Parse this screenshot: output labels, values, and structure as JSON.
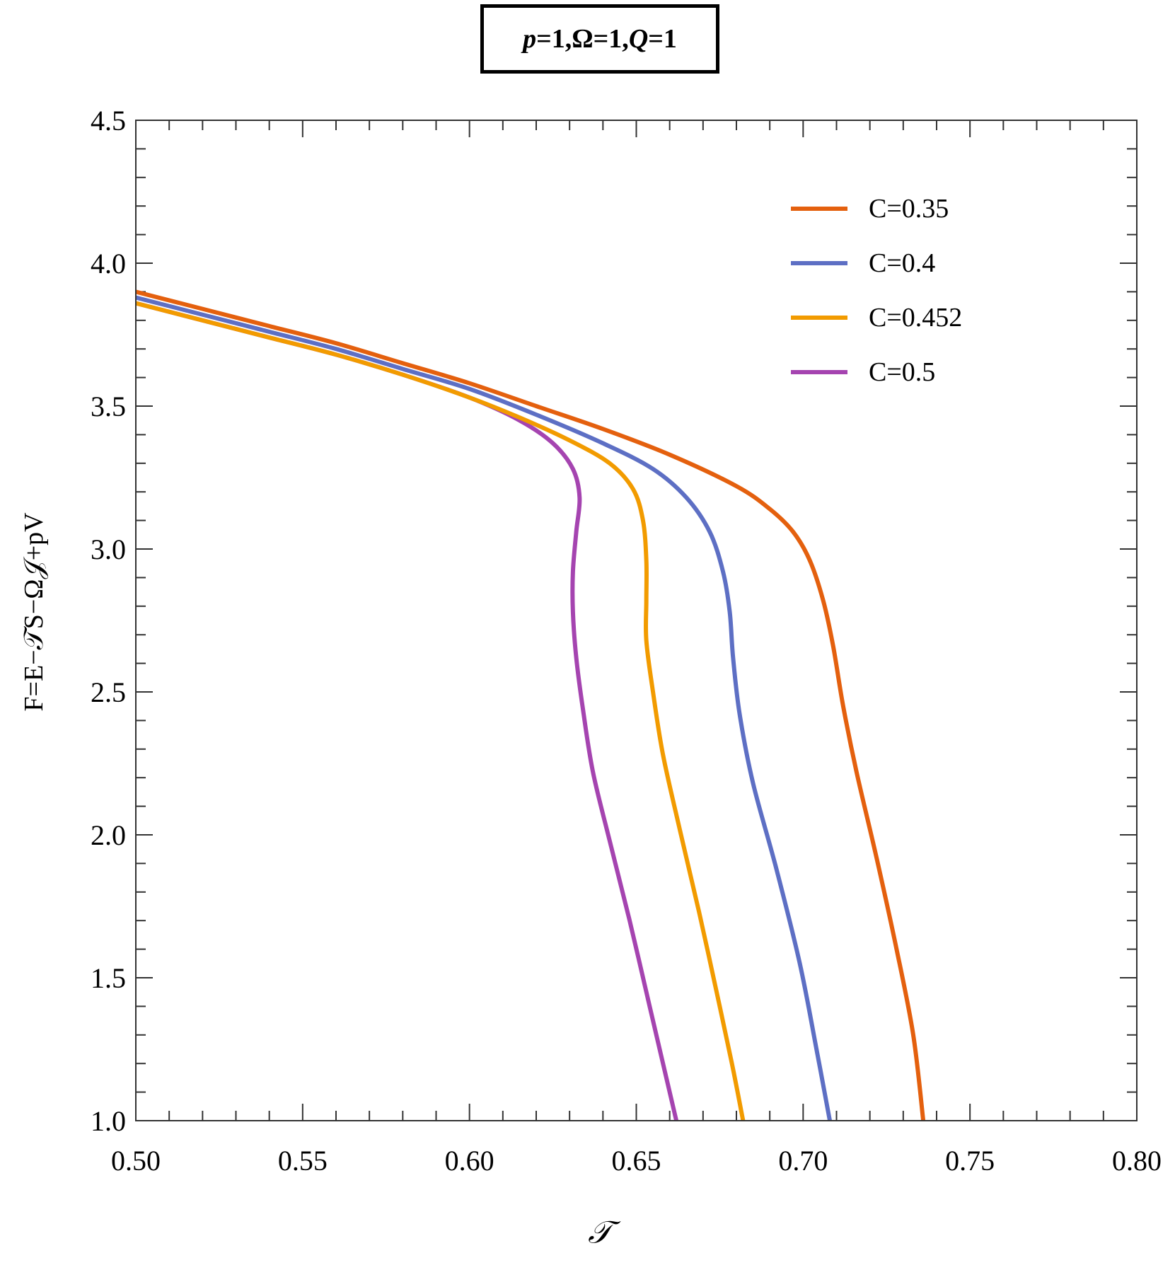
{
  "title": {
    "parts": [
      {
        "text": "p",
        "italic": true
      },
      {
        "text": "=1, ",
        "italic": false
      },
      {
        "text": "Ω",
        "italic": false
      },
      {
        "text": "=1, ",
        "italic": false
      },
      {
        "text": "Q",
        "italic": true
      },
      {
        "text": "=1",
        "italic": false
      }
    ],
    "text": "p=1, Ω=1, Q=1"
  },
  "axes": {
    "xlabel": "𝒯",
    "ylabel": "F=E−𝒯S−Ω𝒥+pV"
  },
  "legend": {
    "items": [
      {
        "label": "C=0.35",
        "color": "#E4600E"
      },
      {
        "label": "C=0.4",
        "color": "#5D6FC4"
      },
      {
        "label": "C=0.452",
        "color": "#F29B00"
      },
      {
        "label": "C=0.5",
        "color": "#A544B0"
      }
    ]
  },
  "chart_data": {
    "type": "line",
    "title": "p=1, Ω=1, Q=1",
    "xlabel": "𝒯",
    "ylabel": "F=E−𝒯S−Ω𝒥+pV",
    "xlim": [
      0.5,
      0.8
    ],
    "ylim": [
      1.0,
      4.5
    ],
    "x_ticks": [
      "0.50",
      "0.55",
      "0.60",
      "0.65",
      "0.70",
      "0.75",
      "0.80"
    ],
    "y_ticks": [
      "1.0",
      "1.5",
      "2.0",
      "2.5",
      "3.0",
      "3.5",
      "4.0",
      "4.5"
    ],
    "x_minor_step": 0.01,
    "y_minor_step": 0.1,
    "grid": false,
    "legend_position": "upper right",
    "series": [
      {
        "name": "C=0.35",
        "color": "#E4600E",
        "points": [
          [
            0.5,
            3.9
          ],
          [
            0.52,
            3.84
          ],
          [
            0.54,
            3.78
          ],
          [
            0.56,
            3.72
          ],
          [
            0.58,
            3.65
          ],
          [
            0.6,
            3.58
          ],
          [
            0.62,
            3.5
          ],
          [
            0.64,
            3.42
          ],
          [
            0.66,
            3.33
          ],
          [
            0.68,
            3.22
          ],
          [
            0.69,
            3.14
          ],
          [
            0.697,
            3.06
          ],
          [
            0.702,
            2.96
          ],
          [
            0.706,
            2.82
          ],
          [
            0.709,
            2.66
          ],
          [
            0.712,
            2.45
          ],
          [
            0.716,
            2.22
          ],
          [
            0.722,
            1.92
          ],
          [
            0.728,
            1.6
          ],
          [
            0.733,
            1.3
          ],
          [
            0.736,
            1.0
          ]
        ]
      },
      {
        "name": "C=0.4",
        "color": "#5D6FC4",
        "points": [
          [
            0.5,
            3.88
          ],
          [
            0.52,
            3.82
          ],
          [
            0.54,
            3.76
          ],
          [
            0.56,
            3.7
          ],
          [
            0.58,
            3.63
          ],
          [
            0.6,
            3.56
          ],
          [
            0.62,
            3.47
          ],
          [
            0.64,
            3.37
          ],
          [
            0.655,
            3.28
          ],
          [
            0.665,
            3.18
          ],
          [
            0.672,
            3.06
          ],
          [
            0.676,
            2.92
          ],
          [
            0.678,
            2.78
          ],
          [
            0.679,
            2.62
          ],
          [
            0.681,
            2.42
          ],
          [
            0.685,
            2.18
          ],
          [
            0.692,
            1.88
          ],
          [
            0.699,
            1.55
          ],
          [
            0.704,
            1.25
          ],
          [
            0.708,
            1.0
          ]
        ]
      },
      {
        "name": "C=0.452",
        "color": "#F29B00",
        "points": [
          [
            0.5,
            3.86
          ],
          [
            0.52,
            3.8
          ],
          [
            0.54,
            3.74
          ],
          [
            0.56,
            3.68
          ],
          [
            0.58,
            3.61
          ],
          [
            0.6,
            3.53
          ],
          [
            0.615,
            3.46
          ],
          [
            0.63,
            3.38
          ],
          [
            0.642,
            3.3
          ],
          [
            0.649,
            3.21
          ],
          [
            0.652,
            3.1
          ],
          [
            0.653,
            2.96
          ],
          [
            0.653,
            2.82
          ],
          [
            0.653,
            2.68
          ],
          [
            0.655,
            2.5
          ],
          [
            0.658,
            2.28
          ],
          [
            0.663,
            2.02
          ],
          [
            0.669,
            1.72
          ],
          [
            0.675,
            1.4
          ],
          [
            0.679,
            1.18
          ],
          [
            0.682,
            1.0
          ]
        ]
      },
      {
        "name": "C=0.5",
        "color": "#A544B0",
        "points": [
          [
            0.5,
            3.86
          ],
          [
            0.52,
            3.8
          ],
          [
            0.54,
            3.74
          ],
          [
            0.56,
            3.68
          ],
          [
            0.58,
            3.61
          ],
          [
            0.6,
            3.53
          ],
          [
            0.615,
            3.45
          ],
          [
            0.625,
            3.37
          ],
          [
            0.631,
            3.28
          ],
          [
            0.633,
            3.18
          ],
          [
            0.632,
            3.06
          ],
          [
            0.631,
            2.92
          ],
          [
            0.631,
            2.78
          ],
          [
            0.632,
            2.62
          ],
          [
            0.634,
            2.44
          ],
          [
            0.637,
            2.22
          ],
          [
            0.642,
            1.98
          ],
          [
            0.648,
            1.7
          ],
          [
            0.654,
            1.4
          ],
          [
            0.659,
            1.15
          ],
          [
            0.662,
            1.0
          ]
        ]
      }
    ]
  }
}
